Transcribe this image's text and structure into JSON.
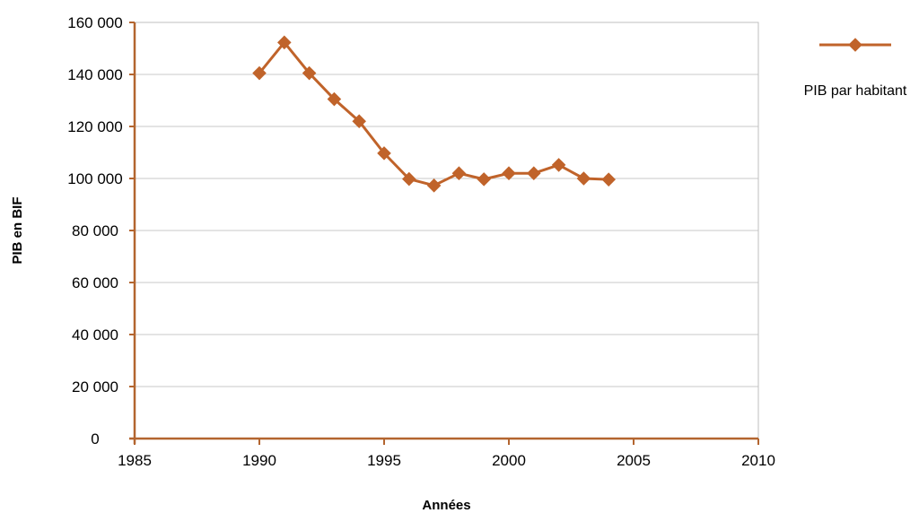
{
  "chart_data": {
    "type": "scatter",
    "xlabel": "Années",
    "ylabel": "PIB en BIF",
    "xlim": [
      1985,
      2010
    ],
    "ylim": [
      0,
      160000
    ],
    "x_ticks": [
      1985,
      1990,
      1995,
      2000,
      2005,
      2010
    ],
    "y_ticks": [
      0,
      20000,
      40000,
      60000,
      80000,
      100000,
      120000,
      140000,
      160000
    ],
    "x_tick_labels": [
      "1985",
      "1990",
      "1995",
      "2000",
      "2005",
      "2010"
    ],
    "y_tick_labels": [
      "0",
      "20 000",
      "40 000",
      "60 000",
      "80 000",
      "100 000",
      "120 000",
      "140 000",
      "160 000"
    ],
    "grid": "horizontal",
    "legend_position": "right",
    "series": [
      {
        "name": "PIB par habitant",
        "color": "#c0632a",
        "marker": "diamond",
        "points": [
          {
            "x": 1990,
            "y": 140500
          },
          {
            "x": 1991,
            "y": 152300
          },
          {
            "x": 1992,
            "y": 140500
          },
          {
            "x": 1993,
            "y": 130500
          },
          {
            "x": 1994,
            "y": 122000
          },
          {
            "x": 1995,
            "y": 109700
          },
          {
            "x": 1996,
            "y": 99800
          },
          {
            "x": 1997,
            "y": 97300
          },
          {
            "x": 1998,
            "y": 102000
          },
          {
            "x": 1999,
            "y": 99700
          },
          {
            "x": 2000,
            "y": 102000
          },
          {
            "x": 2001,
            "y": 102000
          },
          {
            "x": 2002,
            "y": 105200
          },
          {
            "x": 2003,
            "y": 100000
          },
          {
            "x": 2004,
            "y": 99600
          }
        ]
      }
    ]
  }
}
